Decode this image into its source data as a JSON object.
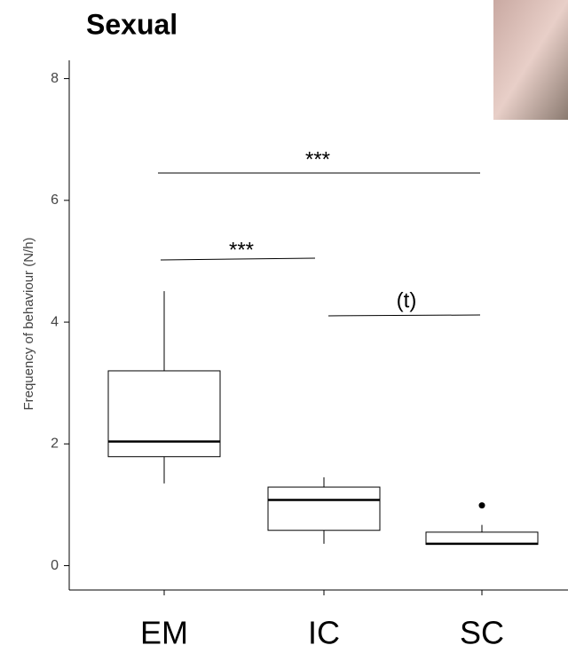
{
  "chart_data": {
    "type": "box",
    "title": "Sexual",
    "y_label": "Frequency of behaviour (N/h)",
    "categories": [
      "EM",
      "IC",
      "SC"
    ],
    "stats": {
      "whislo": [
        1.35,
        0.36,
        0.35
      ],
      "q1": [
        1.79,
        0.58,
        0.35
      ],
      "median": [
        2.04,
        1.08,
        0.36
      ],
      "q3": [
        3.2,
        1.29,
        0.55
      ],
      "whishi": [
        4.51,
        1.45,
        0.67
      ]
    },
    "outliers": [
      [],
      [],
      [
        0.99
      ]
    ],
    "ylim": [
      -0.4,
      8.3
    ],
    "yticks": [
      0,
      2,
      4,
      6,
      8
    ],
    "grid": false,
    "annotations": [
      "***",
      "***",
      "(t)"
    ]
  }
}
